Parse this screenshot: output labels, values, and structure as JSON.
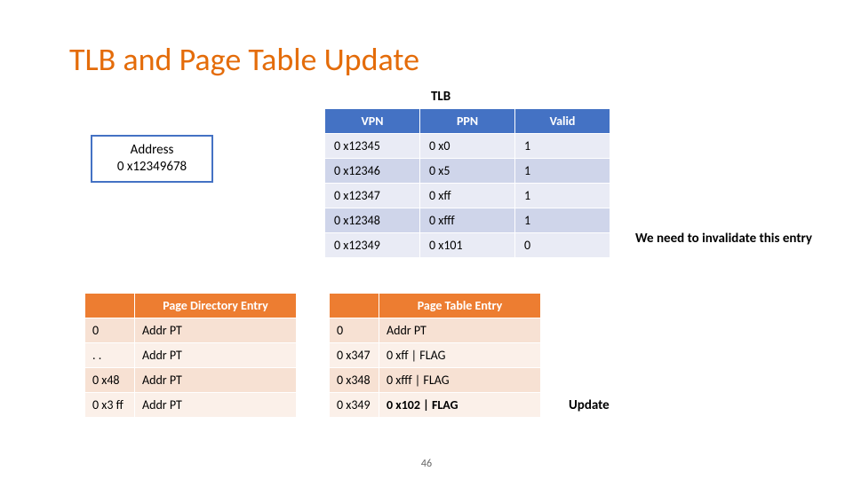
{
  "title": "TLB and Page Table Update",
  "page_number": "46",
  "colors": {
    "title": "#e46c0a",
    "tlb_header_bg": "#4472c4",
    "tlb_row_alt_a": "#cfd5ea",
    "tlb_row_alt_b": "#e9ebf5",
    "orange_header_bg": "#ed7d31",
    "orange_row_alt_a": "#f7e1d3",
    "orange_row_alt_b": "#fbf0e9",
    "address_border": "#4472c4"
  },
  "address_box": {
    "line1": "Address",
    "line2": "0 x12349678"
  },
  "tlb": {
    "caption": "TLB",
    "headers": [
      "VPN",
      "PPN",
      "Valid"
    ],
    "rows": [
      [
        "0 x12345",
        "0 x0",
        "1"
      ],
      [
        "0 x12346",
        "0 x5",
        "1"
      ],
      [
        "0 x12347",
        "0 xff",
        "1"
      ],
      [
        "0 x12348",
        "0 xfff",
        "1"
      ],
      [
        "0 x12349",
        "0 x101",
        "0"
      ]
    ]
  },
  "annot_invalidate": "We need to invalidate this entry",
  "pde": {
    "header_blank": "",
    "header": "Page Directory Entry",
    "rows": [
      [
        "0",
        "Addr PT"
      ],
      [
        ". .",
        "Addr PT"
      ],
      [
        "0 x48",
        "Addr PT"
      ],
      [
        "0 x3 ff",
        "Addr PT"
      ]
    ]
  },
  "pte": {
    "header_blank": "",
    "header": "Page Table Entry",
    "rows": [
      [
        "0",
        "Addr PT"
      ],
      [
        "0 x347",
        "0 xff | FLAG"
      ],
      [
        "0 x348",
        "0 xfff | FLAG"
      ],
      [
        "0 x349",
        "0 x102 | FLAG"
      ]
    ]
  },
  "annot_update": "Update"
}
